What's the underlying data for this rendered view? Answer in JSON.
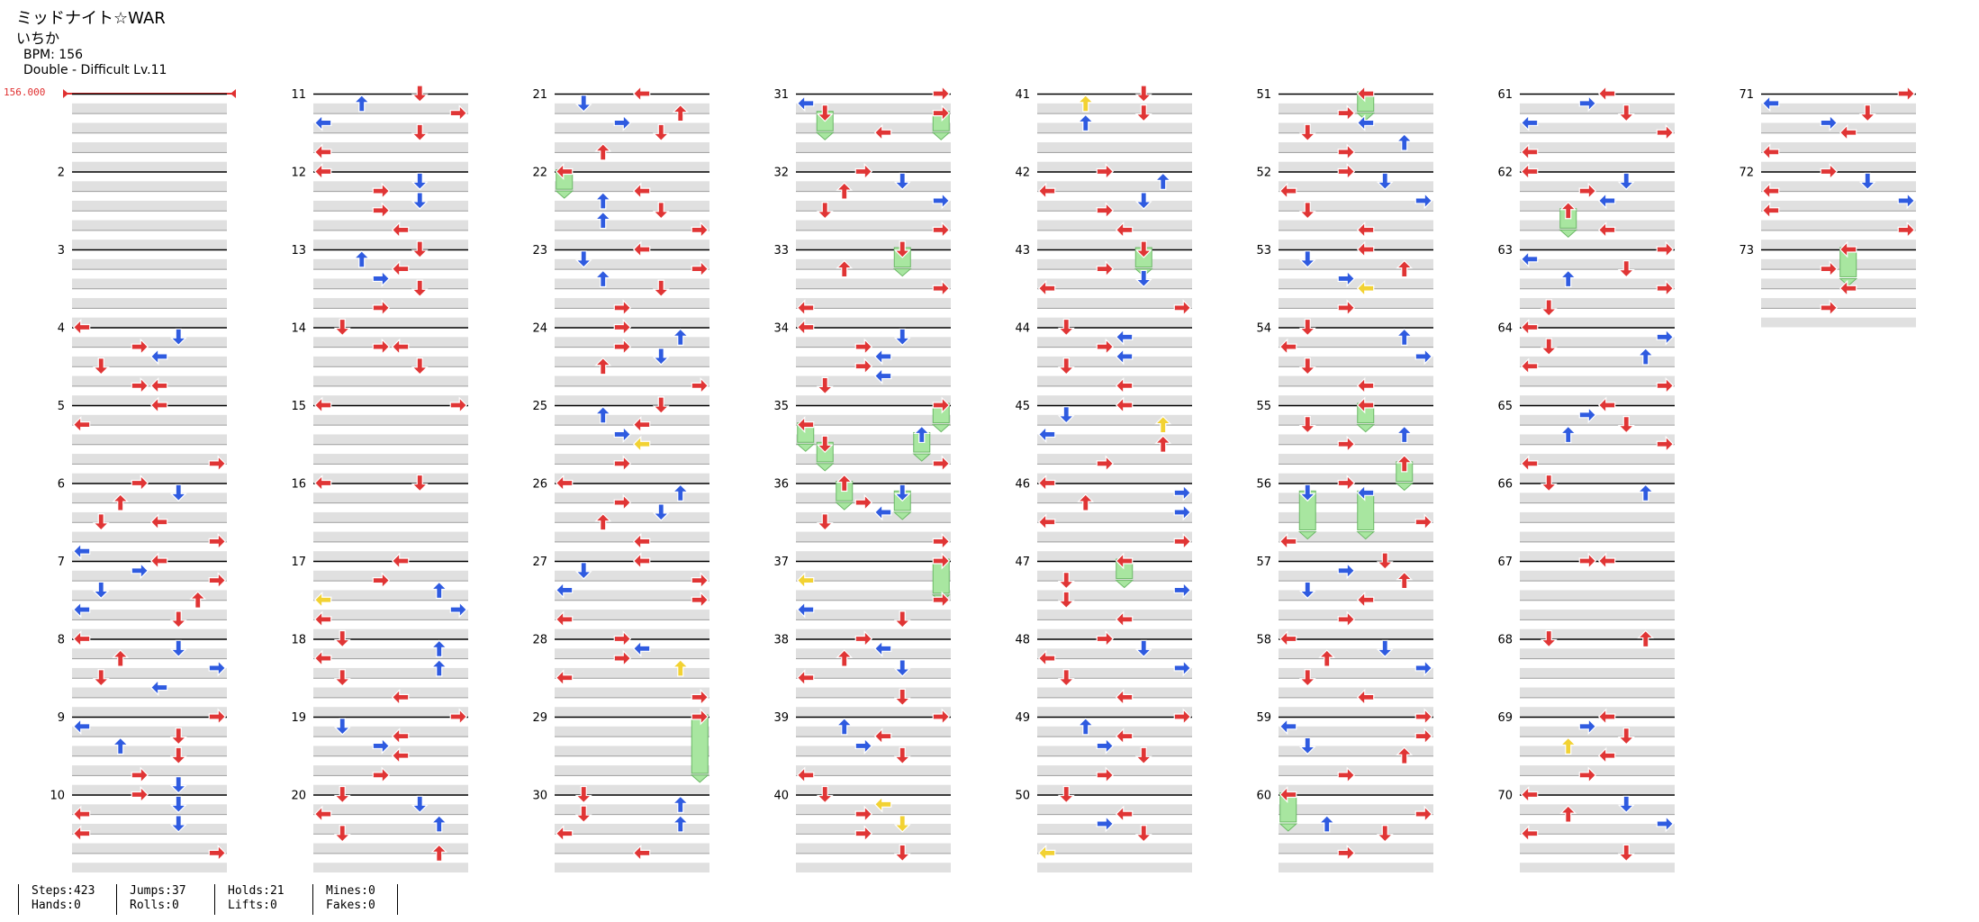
{
  "song": {
    "title": "ミッドナイト☆WAR",
    "artist": "いちか",
    "bpm_text": "BPM: 156",
    "difficulty_text": "Double - Difficult  Lv.11",
    "bpm_marker": "156.000"
  },
  "layout": {
    "columns": 8,
    "measures_per_column": 10,
    "total_measures": 73,
    "panels": 8
  },
  "colors": {
    "quarter_note": "#e03535",
    "eighth_note": "#2f5be0",
    "sixteenth_note": "#f2d233",
    "hold_body": "#a8e6a0",
    "stripe": "#e0e0e0",
    "bpm_marker": "#e03030"
  },
  "notes": {
    "1": [],
    "2": [],
    "3": [],
    "4": [
      [
        0,
        "L"
      ],
      [
        0.125,
        "D"
      ],
      [
        0.25,
        "R"
      ],
      [
        0.375,
        "L"
      ],
      [
        0.5,
        "D"
      ],
      [
        0.75,
        "L"
      ],
      [
        0.75,
        "R"
      ]
    ],
    "5": [
      [
        0,
        "L"
      ],
      [
        0.25,
        "L"
      ],
      [
        0.75,
        "R"
      ]
    ],
    "6": [
      [
        0,
        "R"
      ],
      [
        0.125,
        "D"
      ],
      [
        0.25,
        "U"
      ],
      [
        0.5,
        "L"
      ],
      [
        0.5,
        "D"
      ],
      [
        0.75,
        "R"
      ],
      [
        0.875,
        "L"
      ]
    ],
    "7": [
      [
        0,
        "L"
      ],
      [
        0.125,
        "R"
      ],
      [
        0.25,
        "R"
      ],
      [
        0.375,
        "D"
      ],
      [
        0.5,
        "U"
      ],
      [
        0.625,
        "L"
      ],
      [
        0.75,
        "D"
      ]
    ],
    "8": [
      [
        0,
        "L"
      ],
      [
        0.125,
        "D"
      ],
      [
        0.25,
        "U"
      ],
      [
        0.375,
        "R"
      ],
      [
        0.5,
        "D"
      ],
      [
        0.625,
        "L"
      ]
    ],
    "9": [
      [
        0,
        "R"
      ],
      [
        0.125,
        "L"
      ],
      [
        0.25,
        "D"
      ],
      [
        0.375,
        "U"
      ],
      [
        0.5,
        "D"
      ],
      [
        0.75,
        "R"
      ],
      [
        0.875,
        "D"
      ]
    ],
    "10": [
      [
        0,
        "R"
      ],
      [
        0.125,
        "D"
      ],
      [
        0.25,
        "L"
      ],
      [
        0.375,
        "D"
      ],
      [
        0.5,
        "L"
      ],
      [
        0.75,
        "R"
      ]
    ],
    "11": [
      [
        0,
        "D"
      ],
      [
        0.125,
        "U"
      ],
      [
        0.25,
        "R"
      ],
      [
        0.375,
        "L"
      ],
      [
        0.5,
        "D"
      ],
      [
        0.75,
        "L"
      ]
    ],
    "12": [
      [
        0,
        "L"
      ],
      [
        0.125,
        "D"
      ],
      [
        0.25,
        "R"
      ],
      [
        0.375,
        "D"
      ],
      [
        0.5,
        "R"
      ],
      [
        0.75,
        "L"
      ]
    ],
    "13": [
      [
        0,
        "D"
      ],
      [
        0.125,
        "U"
      ],
      [
        0.25,
        "L"
      ],
      [
        0.375,
        "R"
      ],
      [
        0.5,
        "D"
      ],
      [
        0.75,
        "R"
      ]
    ],
    "14": [
      [
        0,
        "D"
      ],
      [
        0.25,
        "L"
      ],
      [
        0.25,
        "R"
      ],
      [
        0.5,
        "D"
      ]
    ],
    "15": [
      [
        0,
        "R"
      ],
      [
        0,
        "L"
      ]
    ],
    "16": [
      [
        0,
        "L"
      ],
      [
        0,
        "D"
      ]
    ],
    "17": [
      [
        0,
        "L"
      ],
      [
        0.25,
        "R"
      ],
      [
        0.375,
        "U"
      ],
      [
        0.5,
        "L",
        3
      ],
      [
        0.625,
        "R"
      ],
      [
        0.75,
        "L"
      ]
    ],
    "18": [
      [
        0,
        "D"
      ],
      [
        0.125,
        "U"
      ],
      [
        0.25,
        "L"
      ],
      [
        0.375,
        "U"
      ],
      [
        0.5,
        "D"
      ],
      [
        0.75,
        "L"
      ]
    ],
    "19": [
      [
        0,
        "R"
      ],
      [
        0.125,
        "D"
      ],
      [
        0.25,
        "L"
      ],
      [
        0.375,
        "R"
      ],
      [
        0.5,
        "L"
      ],
      [
        0.75,
        "R"
      ]
    ],
    "20": [
      [
        0,
        "D"
      ],
      [
        0.125,
        "D"
      ],
      [
        0.25,
        "L"
      ],
      [
        0.375,
        "U"
      ],
      [
        0.5,
        "D"
      ],
      [
        0.75,
        "U"
      ]
    ],
    "21": [
      [
        0,
        "L"
      ],
      [
        0.125,
        "D"
      ],
      [
        0.25,
        "U"
      ],
      [
        0.375,
        "R"
      ],
      [
        0.5,
        "D"
      ],
      [
        0.75,
        "U"
      ]
    ],
    "22": [
      [
        0,
        "L",
        4
      ],
      [
        0.25,
        "L"
      ],
      [
        0.375,
        "U"
      ],
      [
        0.5,
        "D"
      ],
      [
        0.625,
        "U"
      ],
      [
        0.75,
        "R"
      ]
    ],
    "23": [
      [
        0,
        "L"
      ],
      [
        0.125,
        "D"
      ],
      [
        0.25,
        "R"
      ],
      [
        0.375,
        "U"
      ],
      [
        0.5,
        "D"
      ],
      [
        0.75,
        "R"
      ]
    ],
    "24": [
      [
        0,
        "R"
      ],
      [
        0.125,
        "U"
      ],
      [
        0.25,
        "R"
      ],
      [
        0.375,
        "D"
      ],
      [
        0.5,
        "U"
      ],
      [
        0.75,
        "R"
      ]
    ],
    "25": [
      [
        0,
        "D"
      ],
      [
        0.125,
        "U"
      ],
      [
        0.25,
        "L"
      ],
      [
        0.375,
        "R"
      ],
      [
        0.5,
        "L",
        3
      ],
      [
        0.75,
        "R"
      ]
    ],
    "26": [
      [
        0,
        "L"
      ],
      [
        0.125,
        "U"
      ],
      [
        0.25,
        "R"
      ],
      [
        0.375,
        "D"
      ],
      [
        0.5,
        "U"
      ],
      [
        0.75,
        "L"
      ]
    ],
    "27": [
      [
        0,
        "L"
      ],
      [
        0.125,
        "D"
      ],
      [
        0.25,
        "R"
      ],
      [
        0.375,
        "L"
      ],
      [
        0.5,
        "R"
      ],
      [
        0.75,
        "L"
      ]
    ],
    "28": [
      [
        0,
        "R"
      ],
      [
        0.125,
        "L"
      ],
      [
        0.25,
        "R"
      ],
      [
        0.375,
        "U",
        3
      ],
      [
        0.5,
        "L"
      ],
      [
        0.75,
        "R"
      ]
    ],
    "29": [
      [
        0,
        "R",
        12
      ]
    ],
    "30": [
      [
        0,
        "D"
      ],
      [
        0.125,
        "U"
      ],
      [
        0.25,
        "D"
      ],
      [
        0.375,
        "U"
      ],
      [
        0.5,
        "L"
      ],
      [
        0.75,
        "L"
      ]
    ],
    "31": [
      [
        0,
        "R"
      ],
      [
        0.125,
        "L"
      ],
      [
        0.25,
        "R",
        4
      ],
      [
        0.25,
        "D",
        4
      ],
      [
        0.5,
        "L"
      ]
    ],
    "32": [
      [
        0,
        "R"
      ],
      [
        0.125,
        "D"
      ],
      [
        0.25,
        "U"
      ],
      [
        0.375,
        "R"
      ],
      [
        0.5,
        "D"
      ],
      [
        0.75,
        "R"
      ]
    ],
    "33": [
      [
        0,
        "D",
        4
      ],
      [
        0.25,
        "U"
      ],
      [
        0.5,
        "R"
      ],
      [
        0.75,
        "L"
      ]
    ],
    "34": [
      [
        0,
        "L"
      ],
      [
        0.125,
        "D"
      ],
      [
        0.25,
        "R"
      ],
      [
        0.375,
        "L"
      ],
      [
        0.5,
        "R"
      ],
      [
        0.625,
        "L"
      ],
      [
        0.75,
        "D"
      ]
    ],
    "35": [
      [
        0,
        "R",
        4
      ],
      [
        0.25,
        "L",
        4
      ],
      [
        0.375,
        "U",
        4
      ],
      [
        0.5,
        "D",
        4
      ],
      [
        0.75,
        "R"
      ]
    ],
    "36": [
      [
        0,
        "U",
        4
      ],
      [
        0.125,
        "D",
        4
      ],
      [
        0.25,
        "R"
      ],
      [
        0.375,
        "L"
      ],
      [
        0.5,
        "D"
      ],
      [
        0.75,
        "R"
      ]
    ],
    "37": [
      [
        0,
        "R",
        7
      ],
      [
        0.25,
        "L",
        3
      ],
      [
        0.5,
        "R"
      ],
      [
        0.625,
        "L"
      ],
      [
        0.75,
        "D"
      ]
    ],
    "38": [
      [
        0,
        "R"
      ],
      [
        0.125,
        "L"
      ],
      [
        0.25,
        "U"
      ],
      [
        0.375,
        "D"
      ],
      [
        0.5,
        "L"
      ],
      [
        0.75,
        "D"
      ]
    ],
    "39": [
      [
        0,
        "R"
      ],
      [
        0.125,
        "U"
      ],
      [
        0.25,
        "L"
      ],
      [
        0.375,
        "R"
      ],
      [
        0.5,
        "D"
      ],
      [
        0.75,
        "L"
      ]
    ],
    "40": [
      [
        0,
        "D"
      ],
      [
        0.125,
        "L",
        3
      ],
      [
        0.25,
        "R"
      ],
      [
        0.375,
        "D",
        3
      ],
      [
        0.5,
        "R"
      ],
      [
        0.75,
        "D"
      ]
    ],
    "41": [
      [
        0,
        "D"
      ],
      [
        0.125,
        "U",
        3
      ],
      [
        0.25,
        "D"
      ],
      [
        0.375,
        "U"
      ]
    ],
    "42": [
      [
        0,
        "R"
      ],
      [
        0.125,
        "U"
      ],
      [
        0.25,
        "L"
      ],
      [
        0.375,
        "D"
      ],
      [
        0.5,
        "R"
      ],
      [
        0.75,
        "L"
      ]
    ],
    "43": [
      [
        0,
        "D",
        4
      ],
      [
        0.25,
        "R"
      ],
      [
        0.375,
        "D"
      ],
      [
        0.5,
        "L"
      ],
      [
        0.75,
        "R"
      ]
    ],
    "44": [
      [
        0,
        "D"
      ],
      [
        0.125,
        "L"
      ],
      [
        0.25,
        "R"
      ],
      [
        0.375,
        "L"
      ],
      [
        0.5,
        "D"
      ],
      [
        0.75,
        "L"
      ]
    ],
    "45": [
      [
        0,
        "L"
      ],
      [
        0.125,
        "D"
      ],
      [
        0.25,
        "U",
        3
      ],
      [
        0.375,
        "L"
      ],
      [
        0.5,
        "U"
      ],
      [
        0.75,
        "R"
      ]
    ],
    "46": [
      [
        0,
        "L"
      ],
      [
        0.125,
        "R"
      ],
      [
        0.25,
        "U"
      ],
      [
        0.375,
        "R"
      ],
      [
        0.5,
        "L"
      ],
      [
        0.75,
        "R"
      ]
    ],
    "47": [
      [
        0,
        "L",
        4
      ],
      [
        0.25,
        "D"
      ],
      [
        0.375,
        "R"
      ],
      [
        0.5,
        "D"
      ],
      [
        0.75,
        "L"
      ]
    ],
    "48": [
      [
        0,
        "R"
      ],
      [
        0.125,
        "D"
      ],
      [
        0.25,
        "L"
      ],
      [
        0.375,
        "R"
      ],
      [
        0.5,
        "D"
      ],
      [
        0.75,
        "L"
      ]
    ],
    "49": [
      [
        0,
        "R"
      ],
      [
        0.125,
        "U"
      ],
      [
        0.25,
        "L"
      ],
      [
        0.375,
        "R"
      ],
      [
        0.5,
        "D"
      ],
      [
        0.75,
        "R"
      ]
    ],
    "50": [
      [
        0,
        "D"
      ],
      [
        0.25,
        "L"
      ],
      [
        0.375,
        "R"
      ],
      [
        0.5,
        "D"
      ],
      [
        0.75,
        "L",
        3
      ]
    ],
    "51": [
      [
        0,
        "L",
        4
      ],
      [
        0.25,
        "R"
      ],
      [
        0.375,
        "L"
      ],
      [
        0.5,
        "D"
      ],
      [
        0.625,
        "U"
      ],
      [
        0.75,
        "R"
      ]
    ],
    "52": [
      [
        0,
        "R"
      ],
      [
        0.125,
        "D"
      ],
      [
        0.25,
        "L"
      ],
      [
        0.375,
        "R"
      ],
      [
        0.5,
        "D"
      ],
      [
        0.75,
        "L"
      ]
    ],
    "53": [
      [
        0,
        "L"
      ],
      [
        0.125,
        "D"
      ],
      [
        0.25,
        "U"
      ],
      [
        0.375,
        "R"
      ],
      [
        0.5,
        "L",
        3
      ],
      [
        0.75,
        "R"
      ]
    ],
    "54": [
      [
        0,
        "D"
      ],
      [
        0.125,
        "U"
      ],
      [
        0.25,
        "L"
      ],
      [
        0.375,
        "R"
      ],
      [
        0.5,
        "D"
      ],
      [
        0.75,
        "L"
      ]
    ],
    "55": [
      [
        0,
        "L",
        4
      ],
      [
        0.25,
        "D"
      ],
      [
        0.375,
        "U"
      ],
      [
        0.5,
        "R"
      ],
      [
        0.75,
        "U",
        4
      ]
    ],
    "56": [
      [
        0,
        "R"
      ],
      [
        0.125,
        "L",
        8
      ],
      [
        0.125,
        "D",
        8
      ],
      [
        0.5,
        "R"
      ],
      [
        0.75,
        "L"
      ]
    ],
    "57": [
      [
        0,
        "D"
      ],
      [
        0.125,
        "R"
      ],
      [
        0.25,
        "U"
      ],
      [
        0.375,
        "D"
      ],
      [
        0.5,
        "L"
      ],
      [
        0.75,
        "R"
      ]
    ],
    "58": [
      [
        0,
        "L"
      ],
      [
        0.125,
        "D"
      ],
      [
        0.25,
        "U"
      ],
      [
        0.375,
        "R"
      ],
      [
        0.5,
        "D"
      ],
      [
        0.75,
        "L"
      ]
    ],
    "59": [
      [
        0,
        "R"
      ],
      [
        0.125,
        "L"
      ],
      [
        0.25,
        "R"
      ],
      [
        0.375,
        "D"
      ],
      [
        0.5,
        "U"
      ],
      [
        0.75,
        "R"
      ]
    ],
    "60": [
      [
        0,
        "L",
        6
      ],
      [
        0.25,
        "R"
      ],
      [
        0.375,
        "U"
      ],
      [
        0.5,
        "D"
      ],
      [
        0.75,
        "R"
      ]
    ],
    "61": [
      [
        0,
        "L"
      ],
      [
        0.125,
        "R"
      ],
      [
        0.25,
        "D"
      ],
      [
        0.375,
        "L"
      ],
      [
        0.5,
        "R"
      ],
      [
        0.75,
        "L"
      ]
    ],
    "62": [
      [
        0,
        "L"
      ],
      [
        0.125,
        "D"
      ],
      [
        0.25,
        "R"
      ],
      [
        0.375,
        "L"
      ],
      [
        0.5,
        "U",
        4
      ],
      [
        0.75,
        "L"
      ]
    ],
    "63": [
      [
        0,
        "R"
      ],
      [
        0.125,
        "L"
      ],
      [
        0.25,
        "D"
      ],
      [
        0.375,
        "U"
      ],
      [
        0.5,
        "R"
      ],
      [
        0.75,
        "D"
      ]
    ],
    "64": [
      [
        0,
        "L"
      ],
      [
        0.125,
        "R"
      ],
      [
        0.25,
        "D"
      ],
      [
        0.375,
        "U"
      ],
      [
        0.5,
        "L"
      ],
      [
        0.75,
        "R"
      ]
    ],
    "65": [
      [
        0,
        "L"
      ],
      [
        0.125,
        "R"
      ],
      [
        0.25,
        "D"
      ],
      [
        0.375,
        "U"
      ],
      [
        0.5,
        "R"
      ],
      [
        0.75,
        "L"
      ]
    ],
    "66": [
      [
        0,
        "D"
      ],
      [
        0.125,
        "U"
      ]
    ],
    "67": [
      [
        0,
        "L"
      ],
      [
        0,
        "R"
      ]
    ],
    "68": [
      [
        0,
        "D"
      ],
      [
        0,
        "U"
      ]
    ],
    "69": [
      [
        0,
        "L"
      ],
      [
        0.125,
        "R"
      ],
      [
        0.25,
        "D"
      ],
      [
        0.375,
        "U",
        3
      ],
      [
        0.5,
        "L"
      ],
      [
        0.75,
        "R"
      ]
    ],
    "70": [
      [
        0,
        "L"
      ],
      [
        0.125,
        "D"
      ],
      [
        0.25,
        "U"
      ],
      [
        0.375,
        "R"
      ],
      [
        0.5,
        "L"
      ],
      [
        0.75,
        "D"
      ]
    ],
    "71": [
      [
        0,
        "R"
      ],
      [
        0.125,
        "L"
      ],
      [
        0.25,
        "D"
      ],
      [
        0.375,
        "R"
      ],
      [
        0.5,
        "L"
      ],
      [
        0.75,
        "L"
      ]
    ],
    "72": [
      [
        0,
        "R"
      ],
      [
        0.125,
        "D"
      ],
      [
        0.25,
        "L"
      ],
      [
        0.375,
        "R"
      ],
      [
        0.5,
        "L"
      ],
      [
        0.75,
        "R"
      ]
    ],
    "73": [
      [
        0,
        "L",
        6
      ],
      [
        0.25,
        "R"
      ],
      [
        0.5,
        "L"
      ],
      [
        0.75,
        "R"
      ]
    ]
  },
  "stats": [
    [
      "Steps:423",
      "Hands:0"
    ],
    [
      "Jumps:37",
      "Rolls:0"
    ],
    [
      "Holds:21",
      "Lifts:0"
    ],
    [
      "Mines:0",
      "Fakes:0"
    ]
  ]
}
